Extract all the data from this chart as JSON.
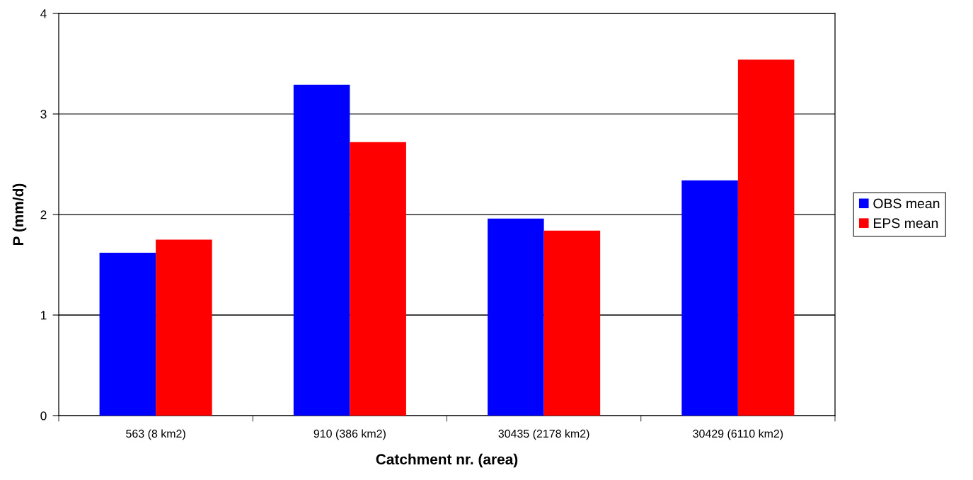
{
  "chart_data": {
    "type": "bar",
    "xlabel": "Catchment nr. (area)",
    "ylabel": "P (mm/d)",
    "categories": [
      "563 (8 km2)",
      "910 (386 km2)",
      "30435 (2178 km2)",
      "30429 (6110 km2)"
    ],
    "series": [
      {
        "name": "OBS mean",
        "color": "#0000ff",
        "values": [
          1.62,
          3.29,
          1.96,
          2.34
        ]
      },
      {
        "name": "EPS mean",
        "color": "#ff0000",
        "values": [
          1.75,
          2.72,
          1.84,
          3.54
        ]
      }
    ],
    "ylim": [
      0,
      4
    ],
    "yticks": [
      0,
      1,
      2,
      3,
      4
    ],
    "grid": "y",
    "legend": "right"
  }
}
